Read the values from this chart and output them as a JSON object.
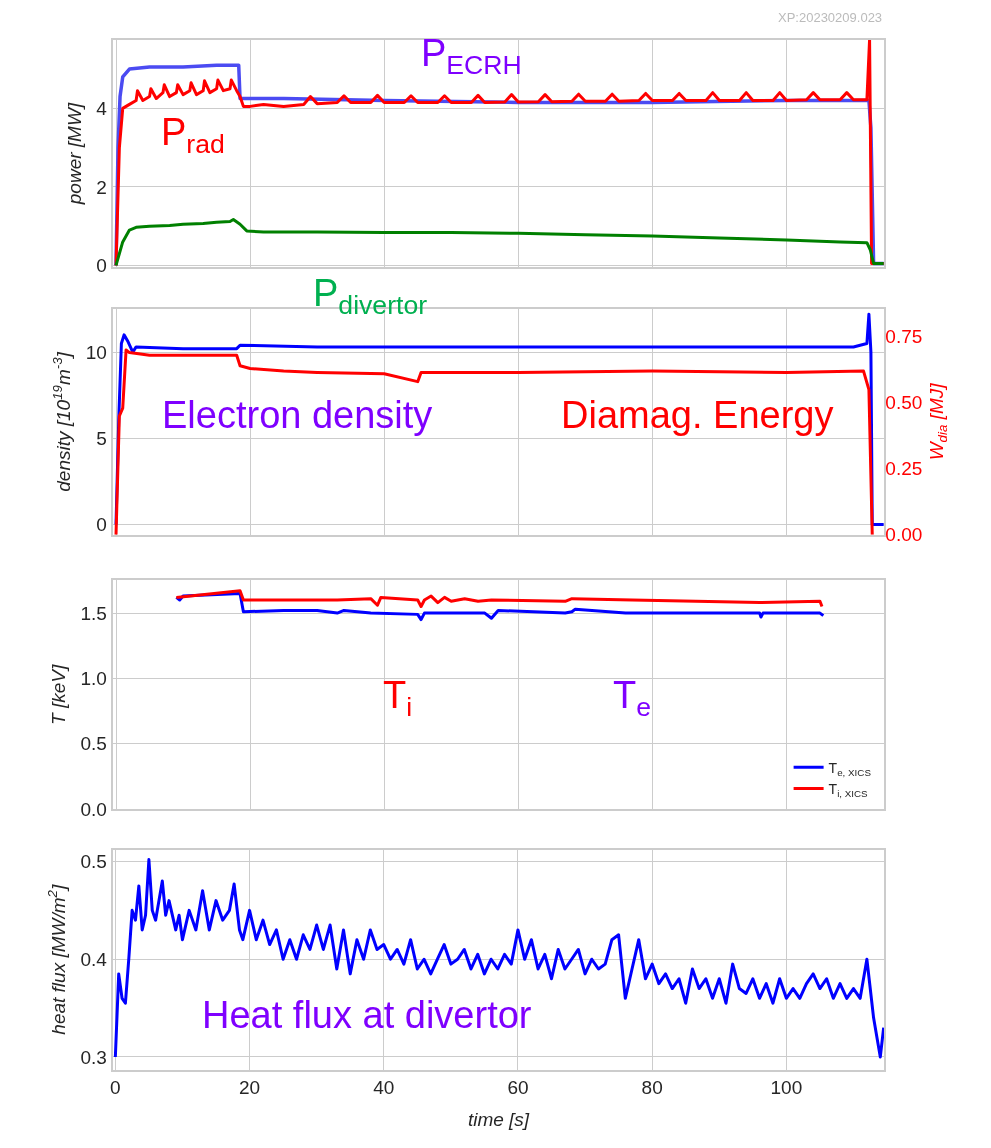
{
  "chart_data": [
    {
      "type": "line",
      "ylabel": "power [MW]",
      "xlim": [
        -0.5,
        114.6
      ],
      "xticks": [
        0,
        20,
        40,
        60,
        80,
        100
      ],
      "ylim": [
        -0.05,
        5.75
      ],
      "yticks": [
        0,
        2,
        4
      ],
      "grid": true,
      "legend": false,
      "tick_labels": "y",
      "annotations": [
        "P$_{ECRH}$",
        "P$_{rad}$",
        "P$_{divertor}$",
        "XP:20230209.023"
      ],
      "series": [
        {
          "color": "#4b4bf2",
          "x": [
            0,
            0.3,
            0.6,
            1,
            2,
            5,
            10,
            15,
            18.3,
            18.5,
            25,
            40,
            60,
            80,
            100,
            112.3,
            112.6,
            113,
            114.5
          ],
          "values": [
            0,
            3.0,
            4.3,
            4.8,
            5.0,
            5.05,
            5.05,
            5.1,
            5.1,
            4.25,
            4.25,
            4.2,
            4.15,
            4.15,
            4.2,
            4.2,
            3.5,
            0.05,
            0.05
          ]
        },
        {
          "color": "#ff0000",
          "x": [
            0,
            0.5,
            1,
            2,
            3,
            3.2,
            4,
            5,
            5.2,
            6,
            7,
            7.2,
            8,
            9,
            9.2,
            10,
            11,
            11.2,
            12,
            13,
            13.2,
            14,
            15,
            15.2,
            16,
            17,
            17.2,
            18,
            18.5,
            19,
            20,
            22,
            25,
            28,
            29,
            30,
            33,
            34,
            35,
            38,
            39,
            40,
            43,
            44,
            45,
            48,
            49,
            50,
            53,
            54,
            55,
            58,
            59,
            60,
            63,
            64,
            65,
            68,
            69,
            70,
            73,
            74,
            75,
            78,
            79,
            80,
            83,
            84,
            85,
            88,
            89,
            90,
            93,
            94,
            95,
            98,
            99,
            100,
            103,
            104,
            105,
            108,
            109,
            110,
            112,
            112.4,
            112.7,
            114.5
          ],
          "values": [
            0,
            3.0,
            4.0,
            4.1,
            4.2,
            4.45,
            4.2,
            4.3,
            4.5,
            4.25,
            4.4,
            4.6,
            4.3,
            4.4,
            4.6,
            4.35,
            4.45,
            4.65,
            4.35,
            4.45,
            4.7,
            4.4,
            4.5,
            4.72,
            4.45,
            4.5,
            4.72,
            4.45,
            4.3,
            4.05,
            4.05,
            4.1,
            4.05,
            4.1,
            4.3,
            4.12,
            4.15,
            4.32,
            4.15,
            4.15,
            4.33,
            4.15,
            4.15,
            4.32,
            4.15,
            4.15,
            4.32,
            4.15,
            4.15,
            4.33,
            4.15,
            4.16,
            4.35,
            4.16,
            4.17,
            4.35,
            4.17,
            4.18,
            4.36,
            4.18,
            4.18,
            4.36,
            4.18,
            4.2,
            4.38,
            4.2,
            4.2,
            4.38,
            4.2,
            4.2,
            4.4,
            4.2,
            4.2,
            4.4,
            4.2,
            4.2,
            4.4,
            4.2,
            4.22,
            4.4,
            4.22,
            4.22,
            4.4,
            4.22,
            4.22,
            5.75,
            0.05,
            0.05
          ]
        },
        {
          "color": "#008000",
          "x": [
            0,
            0.5,
            1,
            2,
            3,
            5,
            8,
            10,
            13,
            15,
            17,
            17.5,
            18.5,
            19.5,
            22,
            30,
            40,
            50,
            60,
            70,
            80,
            90,
            100,
            108,
            112,
            112.5,
            113,
            114.5
          ],
          "values": [
            0,
            0.3,
            0.6,
            0.9,
            0.97,
            1.0,
            1.02,
            1.05,
            1.07,
            1.1,
            1.12,
            1.17,
            1.05,
            0.88,
            0.85,
            0.85,
            0.84,
            0.84,
            0.82,
            0.78,
            0.75,
            0.7,
            0.65,
            0.6,
            0.58,
            0.4,
            0.05,
            0.05
          ]
        }
      ]
    },
    {
      "type": "line",
      "ylabel": "density [10$^{19}$m$^{-3}$]",
      "y2label": "W$_{dia}$ [MJ]",
      "xlim": [
        -0.5,
        114.6
      ],
      "xticks": [
        0,
        20,
        40,
        60,
        80,
        100
      ],
      "ylim": [
        -0.6,
        12.5
      ],
      "yticks": [
        0,
        5,
        10
      ],
      "y2lim": [
        0,
        0.855
      ],
      "y2ticks": [
        {
          "value": 0,
          "label": "0.00"
        },
        0.25,
        {
          "value": 0.5,
          "label": "0.50"
        },
        0.75
      ],
      "grid": true,
      "legend": false,
      "tick_labels": "y",
      "annotations": [
        "Electron density",
        "Diamag. Energy"
      ],
      "series": [
        {
          "color": "#0000ff",
          "x": [
            0,
            0.4,
            0.8,
            1.2,
            1.8,
            2.5,
            3,
            10,
            18,
            18.5,
            30,
            60,
            90,
            110,
            112,
            112.3,
            112.6,
            112.8,
            114.5
          ],
          "values": [
            0,
            6,
            10.5,
            11.0,
            10.6,
            10.0,
            10.3,
            10.2,
            10.2,
            10.4,
            10.3,
            10.3,
            10.3,
            10.3,
            10.5,
            12.2,
            10,
            0,
            0
          ]
        },
        {
          "color": "#ff0000",
          "axis": "y2",
          "x": [
            0,
            0.5,
            1,
            1.5,
            2,
            5,
            10,
            18,
            18.5,
            20,
            25,
            30,
            40,
            45,
            45.5,
            60,
            80,
            100,
            111.5,
            112.3,
            112.8
          ],
          "values": [
            0,
            0.45,
            0.48,
            0.7,
            0.69,
            0.68,
            0.68,
            0.68,
            0.64,
            0.63,
            0.62,
            0.615,
            0.61,
            0.58,
            0.615,
            0.615,
            0.62,
            0.615,
            0.62,
            0.55,
            0
          ]
        }
      ]
    },
    {
      "type": "line",
      "ylabel": "T [keV]",
      "xlim": [
        -0.5,
        114.6
      ],
      "xticks": [
        0,
        20,
        40,
        60,
        80,
        100
      ],
      "ylim": [
        0,
        1.75
      ],
      "yticks": [
        {
          "value": 0,
          "label": "0.0"
        },
        0.5,
        {
          "value": 1,
          "label": "1.0"
        },
        1.5
      ],
      "grid": true,
      "legend": "bottom right",
      "tick_labels": "y",
      "annotations": [
        "T$_{e}$",
        "T$_{i}$"
      ],
      "series": [
        {
          "name": "T$_{e, XICS}$",
          "color": "#0000ff",
          "x": [
            9,
            9.5,
            10,
            18.5,
            19,
            25,
            30,
            33,
            34,
            38,
            45,
            45.5,
            46,
            49,
            55,
            56,
            57,
            67,
            68,
            68.5,
            76,
            80,
            96,
            96.2,
            96.5,
            105,
            105.5
          ],
          "values": [
            1.62,
            1.6,
            1.63,
            1.65,
            1.51,
            1.52,
            1.52,
            1.5,
            1.52,
            1.5,
            1.49,
            1.45,
            1.5,
            1.5,
            1.5,
            1.46,
            1.52,
            1.5,
            1.51,
            1.53,
            1.5,
            1.5,
            1.5,
            1.47,
            1.5,
            1.5,
            1.48
          ]
        },
        {
          "name": "T$_{i, XICS}$",
          "color": "#ff0000",
          "x": [
            9,
            18.5,
            19,
            33,
            38,
            39,
            39.5,
            45,
            45.5,
            46,
            47,
            48,
            49,
            50,
            52,
            54,
            56,
            67,
            68,
            77,
            96,
            105,
            105.3
          ],
          "values": [
            1.62,
            1.67,
            1.6,
            1.6,
            1.61,
            1.56,
            1.62,
            1.6,
            1.55,
            1.6,
            1.63,
            1.58,
            1.62,
            1.59,
            1.61,
            1.59,
            1.6,
            1.59,
            1.61,
            1.6,
            1.58,
            1.59,
            1.55
          ]
        }
      ]
    },
    {
      "type": "line",
      "xlabel": "time [s]",
      "ylabel": "heat flux [MW/m$^{2}$]",
      "xlim": [
        -0.4,
        114.6
      ],
      "xticks": [
        0,
        20,
        40,
        60,
        80,
        100
      ],
      "ylim": [
        0.287,
        0.512
      ],
      "yticks": [
        0.3,
        0.4,
        0.5
      ],
      "grid": true,
      "legend": false,
      "annotations": [
        "Heat flux at divertor"
      ],
      "series": [
        {
          "color": "#0000ff",
          "x": [
            0,
            0.5,
            1,
            1.5,
            2,
            2.5,
            3,
            3.5,
            4,
            4.5,
            5,
            5.5,
            6,
            7,
            7.5,
            8,
            9,
            9.5,
            10,
            11,
            12,
            13,
            14,
            15,
            16,
            17,
            17.7,
            18.5,
            19,
            20,
            21,
            22,
            23,
            24,
            25,
            26,
            27,
            28,
            29,
            30,
            31,
            32,
            33,
            34,
            35,
            36,
            37,
            38,
            39,
            40,
            41,
            42,
            43,
            44,
            45,
            46,
            47,
            48,
            49,
            50,
            51,
            52,
            53,
            54,
            55,
            56,
            57,
            58,
            59,
            60,
            61,
            62,
            63,
            64,
            65,
            66,
            67,
            68,
            69,
            70,
            71,
            72,
            73,
            74,
            75,
            76,
            77,
            78,
            79,
            80,
            81,
            82,
            83,
            84,
            85,
            86,
            87,
            88,
            89,
            90,
            91,
            92,
            93,
            94,
            95,
            96,
            97,
            98,
            99,
            100,
            101,
            102,
            103,
            104,
            105,
            106,
            107,
            108,
            109,
            110,
            111,
            112,
            112.5,
            113,
            113.5,
            114,
            114.5
          ],
          "values": [
            0.3,
            0.385,
            0.36,
            0.355,
            0.4,
            0.45,
            0.44,
            0.475,
            0.43,
            0.445,
            0.502,
            0.45,
            0.44,
            0.48,
            0.445,
            0.46,
            0.43,
            0.445,
            0.42,
            0.45,
            0.43,
            0.47,
            0.43,
            0.46,
            0.44,
            0.45,
            0.477,
            0.43,
            0.42,
            0.45,
            0.42,
            0.44,
            0.415,
            0.43,
            0.4,
            0.42,
            0.4,
            0.425,
            0.41,
            0.435,
            0.41,
            0.435,
            0.39,
            0.43,
            0.385,
            0.42,
            0.4,
            0.43,
            0.41,
            0.415,
            0.4,
            0.41,
            0.395,
            0.42,
            0.39,
            0.4,
            0.385,
            0.4,
            0.415,
            0.395,
            0.4,
            0.41,
            0.39,
            0.405,
            0.385,
            0.4,
            0.39,
            0.405,
            0.395,
            0.43,
            0.4,
            0.42,
            0.39,
            0.405,
            0.38,
            0.41,
            0.39,
            0.4,
            0.41,
            0.385,
            0.4,
            0.39,
            0.395,
            0.42,
            0.425,
            0.36,
            0.39,
            0.42,
            0.38,
            0.395,
            0.375,
            0.385,
            0.37,
            0.38,
            0.355,
            0.39,
            0.37,
            0.38,
            0.36,
            0.38,
            0.355,
            0.395,
            0.37,
            0.365,
            0.38,
            0.36,
            0.375,
            0.355,
            0.38,
            0.36,
            0.37,
            0.36,
            0.375,
            0.385,
            0.37,
            0.38,
            0.36,
            0.375,
            0.36,
            0.37,
            0.36,
            0.4,
            0.37,
            0.34,
            0.32,
            0.3,
            0.33
          ]
        }
      ]
    }
  ]
}
